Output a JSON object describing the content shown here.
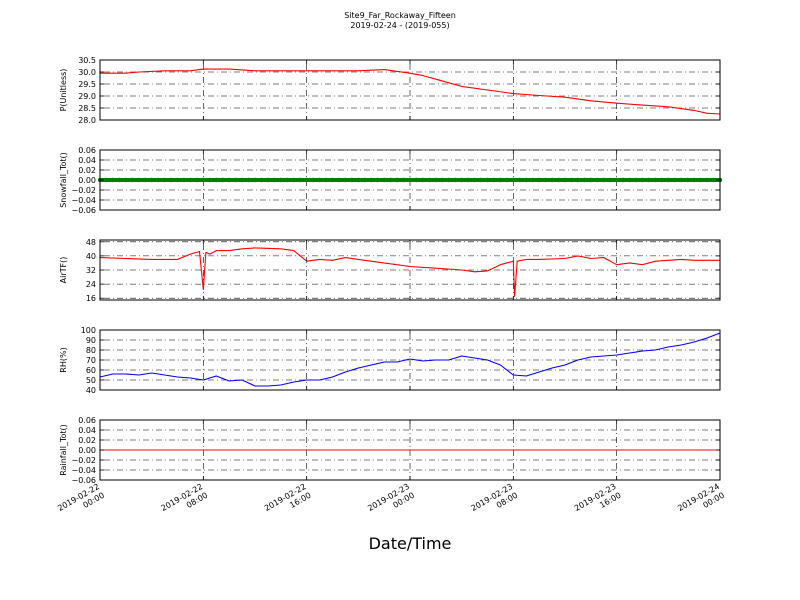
{
  "title": "Site9_Far_Rockaway_Fifteen",
  "subtitle": "2019-02-24 - (2019-055)",
  "xlabel": "Date/Time",
  "x_ticks": [
    [
      "2019-02-22",
      "00:00"
    ],
    [
      "2019-02-22",
      "08:00"
    ],
    [
      "2019-02-22",
      "16:00"
    ],
    [
      "2019-02-23",
      "00:00"
    ],
    [
      "2019-02-23",
      "08:00"
    ],
    [
      "2019-02-23",
      "16:00"
    ],
    [
      "2019-02-24",
      "00:00"
    ]
  ],
  "chart_data": [
    {
      "type": "line",
      "ylabel": "P(Unitless)",
      "ylim": [
        28.0,
        30.5
      ],
      "yticks": [
        "28.0",
        "28.5",
        "29.0",
        "29.5",
        "30.0",
        "30.5"
      ],
      "grid": true,
      "color": "#ff0000",
      "x_hours": [
        0,
        2,
        3,
        5,
        7,
        8,
        10,
        12,
        16,
        20,
        22,
        24,
        25,
        26,
        27,
        28,
        30,
        32,
        34,
        36,
        38,
        40,
        42,
        44,
        46,
        47,
        48
      ],
      "values": [
        29.95,
        29.95,
        30.0,
        30.05,
        30.05,
        30.12,
        30.12,
        30.05,
        30.05,
        30.05,
        30.1,
        29.95,
        29.85,
        29.7,
        29.55,
        29.4,
        29.25,
        29.1,
        29.02,
        28.95,
        28.8,
        28.7,
        28.62,
        28.55,
        28.4,
        28.28,
        28.25
      ]
    },
    {
      "type": "line",
      "ylabel": "Snowfall_Tot()",
      "ylim": [
        -0.06,
        0.06
      ],
      "yticks": [
        "−0.06",
        "−0.04",
        "−0.02",
        "0.00",
        "0.02",
        "0.04",
        "0.06"
      ],
      "grid": true,
      "color": "#008000",
      "marker": "dots",
      "x_hours": [
        0,
        48
      ],
      "values": [
        0.0,
        0.0
      ]
    },
    {
      "type": "line",
      "ylabel": "AirTF()",
      "ylim": [
        15,
        49
      ],
      "yticks": [
        "16",
        "24",
        "32",
        "40",
        "48"
      ],
      "grid": true,
      "color": "#ff0000",
      "x_hours": [
        0,
        2,
        4,
        6,
        7,
        7.7,
        8,
        8.2,
        8.5,
        9,
        10,
        11,
        12,
        14,
        15,
        16,
        17,
        18,
        19,
        20,
        24,
        26,
        28,
        29,
        30,
        31,
        32,
        32.1,
        32.3,
        33,
        34,
        36,
        37,
        38,
        39,
        40,
        41,
        42,
        43,
        44,
        45,
        46,
        48
      ],
      "values": [
        39,
        38.5,
        38,
        38,
        41,
        42.5,
        21,
        42,
        41,
        43,
        43,
        44,
        44.5,
        44,
        43,
        37,
        38,
        37.5,
        39,
        38,
        34,
        33,
        32,
        31,
        31.5,
        35,
        37,
        17,
        37,
        38,
        38,
        38.5,
        40,
        38.5,
        39,
        35,
        36,
        35,
        37,
        37.5,
        38,
        37.5,
        37.5
      ]
    },
    {
      "type": "line",
      "ylabel": "RH(%)",
      "ylim": [
        40,
        100
      ],
      "yticks": [
        "40",
        "50",
        "60",
        "70",
        "80",
        "90",
        "100"
      ],
      "grid": true,
      "color": "#0000ff",
      "x_hours": [
        0,
        1,
        2,
        3,
        4,
        5,
        6,
        7,
        8,
        9,
        10,
        11,
        12,
        13,
        14,
        15,
        16,
        17,
        18,
        19,
        20,
        21,
        22,
        23,
        24,
        25,
        26,
        27,
        28,
        29,
        30,
        31,
        32,
        33,
        34,
        35,
        36,
        37,
        38,
        39,
        40,
        41,
        42,
        43,
        44,
        45,
        46,
        47,
        48
      ],
      "values": [
        53,
        56,
        56,
        55,
        57,
        55,
        53,
        52,
        50,
        54,
        49,
        50,
        44,
        44,
        45,
        48,
        50,
        50,
        53,
        58,
        62,
        65,
        68,
        68,
        71,
        69,
        70,
        70,
        74,
        72,
        70,
        65,
        55,
        54,
        58,
        62,
        65,
        70,
        73,
        74,
        75,
        77,
        79,
        80,
        83,
        85,
        88,
        92,
        97
      ]
    },
    {
      "type": "line",
      "ylabel": "Rainfall_Tot()",
      "ylim": [
        -0.06,
        0.06
      ],
      "yticks": [
        "−0.06",
        "−0.04",
        "−0.02",
        "0.00",
        "0.02",
        "0.04",
        "0.06"
      ],
      "grid": true,
      "color": "#ff0000",
      "x_hours": [
        0,
        48
      ],
      "values": [
        0.0,
        0.0
      ]
    }
  ]
}
